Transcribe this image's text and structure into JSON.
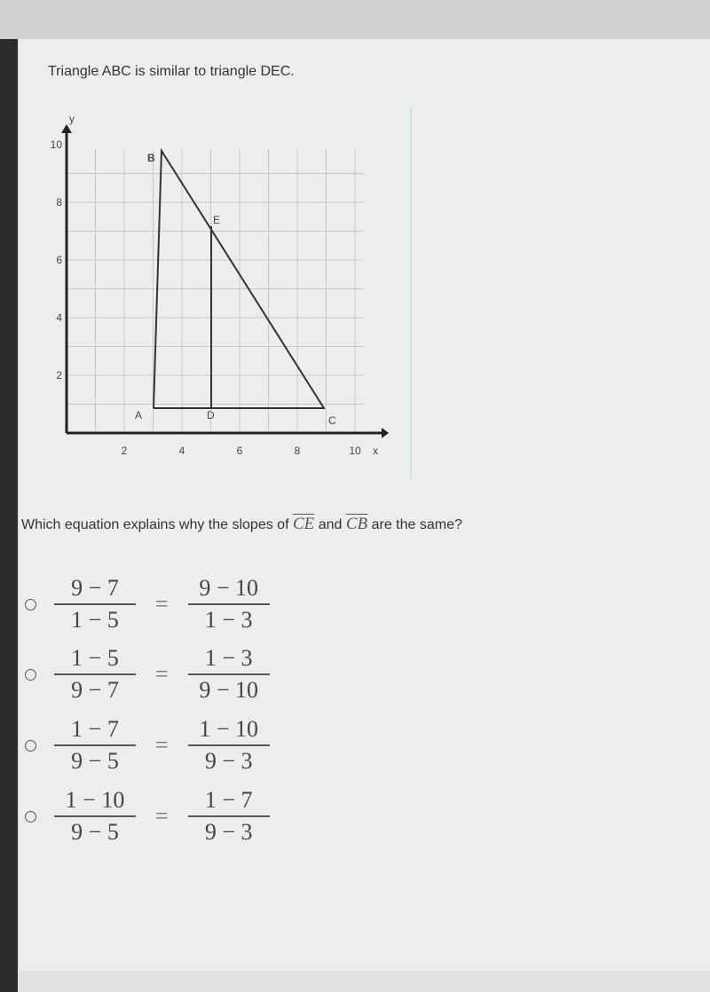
{
  "question1": "Triangle ABC is similar to triangle DEC.",
  "graph": {
    "y_axis_label": "y",
    "x_axis_label": "x",
    "x_ticks": [
      "2",
      "4",
      "6",
      "8",
      "10"
    ],
    "y_ticks": [
      "2",
      "4",
      "6",
      "8",
      "10"
    ],
    "points": {
      "A": "A",
      "B": "B",
      "C": "C",
      "D": "D",
      "E": "E"
    }
  },
  "question2": {
    "before": "Which equation explains why the slopes of",
    "segment1": "CE",
    "middle": "and",
    "segment2": "CB",
    "after": "are the same?"
  },
  "options": [
    {
      "left": {
        "numerator": "9 − 7",
        "denominator": "1 − 5"
      },
      "relation": "=",
      "right": {
        "numerator": "9 − 10",
        "denominator": "1 − 3"
      }
    },
    {
      "left": {
        "numerator": "1 − 5",
        "denominator": "9 − 7"
      },
      "relation": "=",
      "right": {
        "numerator": "1 − 3",
        "denominator": "9 − 10"
      }
    },
    {
      "left": {
        "numerator": "1 − 7",
        "denominator": "9 − 5"
      },
      "relation": "=",
      "right": {
        "numerator": "1 − 10",
        "denominator": "9 − 3"
      }
    },
    {
      "left": {
        "numerator": "1 − 10",
        "denominator": "9 − 5"
      },
      "relation": "=",
      "right": {
        "numerator": "1 − 7",
        "denominator": "9 − 3"
      }
    }
  ]
}
